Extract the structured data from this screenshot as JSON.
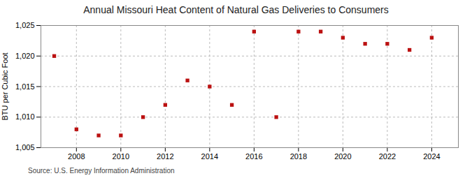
{
  "chart_data": {
    "type": "scatter",
    "title": "Annual Missouri Heat Content of Natural Gas Deliveries to Consumers",
    "ylabel": "BTU per Cubic Foot",
    "source": "Source: U.S. Energy Information Administration",
    "x": [
      2007,
      2008,
      2009,
      2010,
      2011,
      2012,
      2013,
      2014,
      2015,
      2016,
      2017,
      2018,
      2019,
      2020,
      2021,
      2022,
      2023,
      2024
    ],
    "values": [
      1020.0,
      1008.0,
      1007.0,
      1007.0,
      1010.0,
      1012.0,
      1016.0,
      1015.0,
      1012.0,
      1024.0,
      1010.0,
      1024.0,
      1024.0,
      1023.0,
      1022.0,
      1022.0,
      1021.0,
      1023.0
    ],
    "color": "#bb1111",
    "marker": "square",
    "xlim": [
      2006.4,
      2025.2
    ],
    "xticks": [
      2008,
      2010,
      2012,
      2014,
      2016,
      2018,
      2020,
      2022,
      2024
    ],
    "ylim": [
      1005,
      1025
    ],
    "yticks": [
      {
        "value": 1005,
        "label": "1,005"
      },
      {
        "value": 1010,
        "label": "1,010"
      },
      {
        "value": 1015,
        "label": "1,015"
      },
      {
        "value": 1020,
        "label": "1,020"
      },
      {
        "value": 1025,
        "label": "1,025"
      }
    ],
    "grid": true
  }
}
